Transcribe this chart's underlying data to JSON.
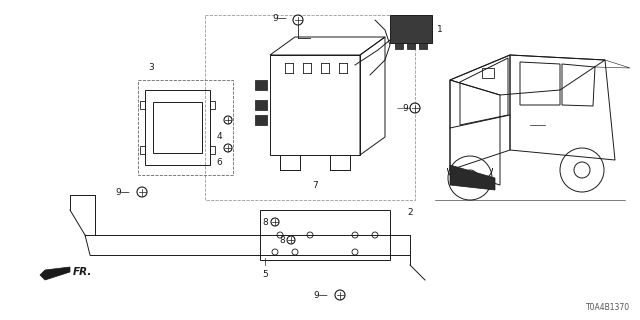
{
  "part_number": "T0A4B1370",
  "bg_color": "#ffffff",
  "fig_width": 6.4,
  "fig_height": 3.2,
  "dpi": 100,
  "line_color": "#1a1a1a",
  "label_fontsize": 6.5,
  "part_num_fontsize": 5.5
}
